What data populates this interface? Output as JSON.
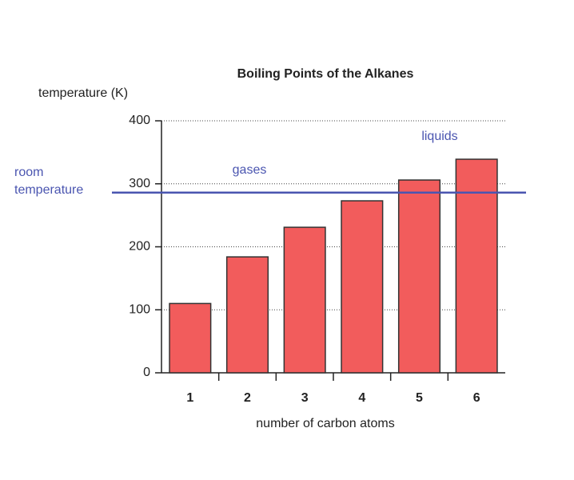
{
  "chart_data": {
    "type": "bar",
    "title": "Boiling Points of the Alkanes",
    "y_label": "temperature (K)",
    "x_label": "number of carbon atoms",
    "categories": [
      "1",
      "2",
      "3",
      "4",
      "5",
      "6"
    ],
    "values": [
      110,
      184,
      231,
      273,
      306,
      339
    ],
    "color": "#f25c5c",
    "edge_color": "#333333",
    "ylim": [
      0,
      400
    ],
    "yticks": [
      0,
      100,
      200,
      300,
      400
    ],
    "grid": true,
    "reference_line": {
      "value": 286,
      "label": [
        "room",
        "temperature"
      ],
      "color": "#4a55b0"
    },
    "annotations": [
      "gases",
      "liquids"
    ]
  }
}
